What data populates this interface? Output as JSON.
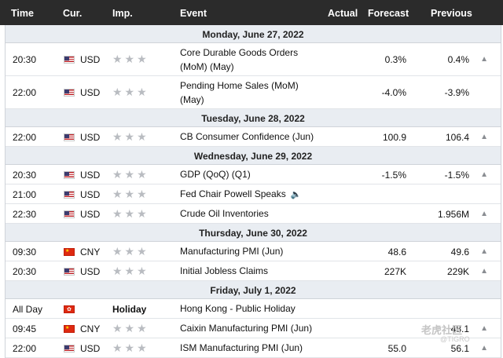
{
  "header": {
    "time": "Time",
    "currency": "Cur.",
    "importance": "Imp.",
    "event": "Event",
    "actual": "Actual",
    "forecast": "Forecast",
    "previous": "Previous"
  },
  "days": [
    {
      "label": "Monday, June 27, 2022"
    },
    {
      "label": "Tuesday, June 28, 2022"
    },
    {
      "label": "Wednesday, June 29, 2022"
    },
    {
      "label": "Thursday, June 30, 2022"
    },
    {
      "label": "Friday, July 1, 2022"
    }
  ],
  "rows": [
    {
      "time": "20:30",
      "cur": "USD",
      "stars": "★★★",
      "event_line1": "Core Durable Goods Orders",
      "event_line2": "(MoM) (May)",
      "forecast": "0.3%",
      "previous": "0.4%",
      "arrow": "▲"
    },
    {
      "time": "22:00",
      "cur": "USD",
      "stars": "★★★",
      "event_line1": "Pending Home Sales (MoM)",
      "event_line2": "(May)",
      "forecast": "-4.0%",
      "previous": "-3.9%",
      "arrow": ""
    },
    {
      "time": "22:00",
      "cur": "USD",
      "stars": "★★★",
      "event": "CB Consumer Confidence (Jun)",
      "forecast": "100.9",
      "previous": "106.4",
      "arrow": "▲"
    },
    {
      "time": "20:30",
      "cur": "USD",
      "stars": "★★★",
      "event": "GDP (QoQ) (Q1)",
      "forecast": "-1.5%",
      "previous": "-1.5%",
      "arrow": "▲"
    },
    {
      "time": "21:00",
      "cur": "USD",
      "stars": "★★★",
      "event": "Fed Chair Powell Speaks",
      "forecast": "",
      "previous": "",
      "arrow": ""
    },
    {
      "time": "22:30",
      "cur": "USD",
      "stars": "★★★",
      "event": "Crude Oil Inventories",
      "forecast": "",
      "previous": "1.956M",
      "arrow": "▲"
    },
    {
      "time": "09:30",
      "cur": "CNY",
      "stars": "★★★",
      "event": "Manufacturing PMI (Jun)",
      "forecast": "48.6",
      "previous": "49.6",
      "arrow": "▲"
    },
    {
      "time": "20:30",
      "cur": "USD",
      "stars": "★★★",
      "event": "Initial Jobless Claims",
      "forecast": "227K",
      "previous": "229K",
      "arrow": "▲"
    },
    {
      "time": "All Day",
      "cur": "",
      "holiday": "Holiday",
      "event": "Hong Kong - Public Holiday"
    },
    {
      "time": "09:45",
      "cur": "CNY",
      "stars": "★★★",
      "event": "Caixin Manufacturing PMI (Jun)",
      "forecast": "",
      "previous": "48.1",
      "arrow": "▲"
    },
    {
      "time": "22:00",
      "cur": "USD",
      "stars": "★★★",
      "event": "ISM Manufacturing PMI (Jun)",
      "forecast": "55.0",
      "previous": "56.1",
      "arrow": "▲"
    }
  ],
  "watermark": {
    "text": "老虎社区",
    "sub": "@TIGRO"
  }
}
